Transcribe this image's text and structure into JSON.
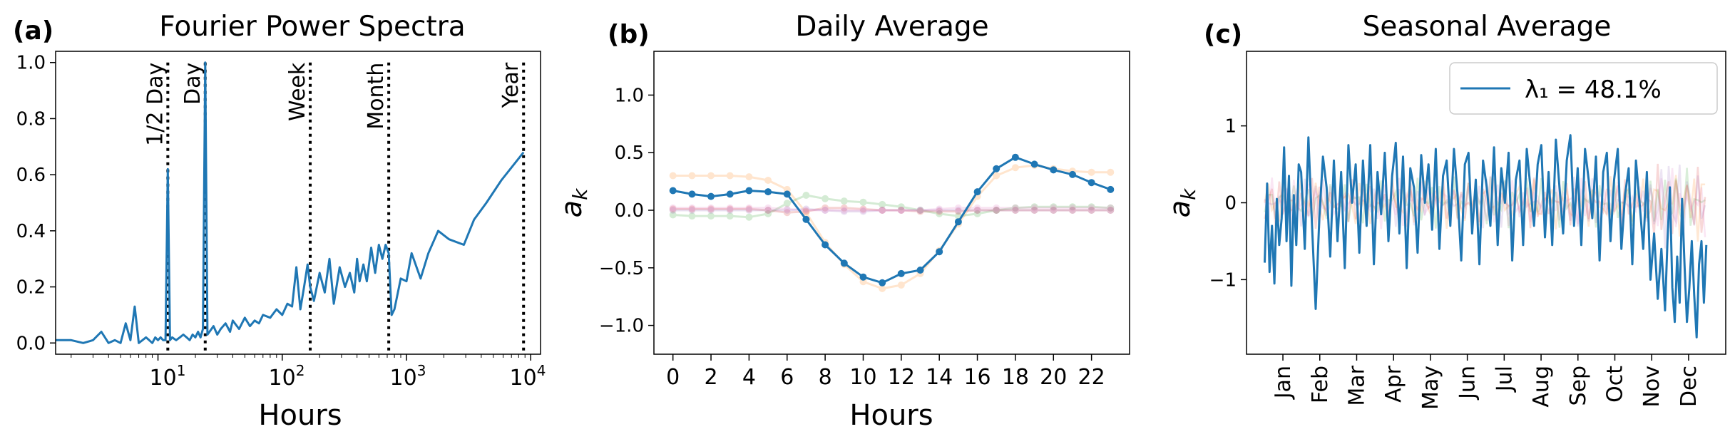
{
  "chart_data": [
    {
      "panel_label": "(a)",
      "type": "line",
      "title": "Fourier Power Spectra",
      "xlabel": "Hours",
      "ylabel": "",
      "xscale": "log",
      "xlim": [
        1.5,
        12000
      ],
      "ylim": [
        -0.04,
        1.04
      ],
      "xtick_labels": [
        "10^1",
        "10^2",
        "10^3",
        "10^4"
      ],
      "ytick_labels": [
        "0.0",
        "0.2",
        "0.4",
        "0.6",
        "0.8",
        "1.0"
      ],
      "color": "#1f77b4",
      "reference_lines": [
        {
          "label": "1/2 Day",
          "x": 12
        },
        {
          "label": "Day",
          "x": 24
        },
        {
          "label": "Week",
          "x": 168
        },
        {
          "label": "Month",
          "x": 720
        },
        {
          "label": "Year",
          "x": 8760
        }
      ],
      "series": [
        {
          "x": [
            1.5,
            2,
            2.5,
            3,
            3.5,
            4,
            4.5,
            5,
            5.5,
            6,
            6.5,
            7,
            7.5,
            8,
            8.5,
            9,
            9.5,
            10,
            10.5,
            11,
            11.5,
            12,
            12.5,
            13,
            14,
            15,
            16,
            17,
            18,
            19,
            20,
            21,
            22,
            23,
            24,
            25,
            26,
            28,
            30,
            32,
            35,
            38,
            40,
            45,
            50,
            55,
            60,
            65,
            70,
            80,
            90,
            100,
            110,
            120,
            130,
            140,
            150,
            160,
            168,
            180,
            200,
            220,
            240,
            260,
            290,
            320,
            350,
            380,
            400,
            420,
            450,
            480,
            520,
            560,
            600,
            640,
            680,
            720,
            760,
            800,
            900,
            1000,
            1100,
            1300,
            1500,
            1800,
            2200,
            2900,
            3500,
            4400,
            5800,
            8760
          ],
          "y": [
            0.01,
            0.01,
            0.0,
            0.01,
            0.04,
            0.0,
            0.01,
            0.0,
            0.07,
            0.01,
            0.13,
            0.0,
            0.01,
            0.02,
            0.01,
            0.0,
            0.02,
            0.01,
            0.02,
            0.01,
            0.01,
            0.62,
            0.01,
            0.02,
            0.01,
            0.02,
            0.03,
            0.02,
            0.01,
            0.03,
            0.02,
            0.04,
            0.02,
            0.05,
            1.0,
            0.03,
            0.04,
            0.06,
            0.03,
            0.05,
            0.07,
            0.04,
            0.08,
            0.05,
            0.09,
            0.06,
            0.08,
            0.07,
            0.1,
            0.09,
            0.12,
            0.1,
            0.14,
            0.13,
            0.27,
            0.12,
            0.2,
            0.28,
            0.2,
            0.15,
            0.25,
            0.18,
            0.3,
            0.14,
            0.27,
            0.2,
            0.25,
            0.18,
            0.3,
            0.22,
            0.28,
            0.22,
            0.34,
            0.25,
            0.35,
            0.3,
            0.35,
            0.32,
            0.1,
            0.12,
            0.23,
            0.22,
            0.32,
            0.23,
            0.32,
            0.4,
            0.37,
            0.35,
            0.44,
            0.5,
            0.58,
            0.68
          ]
        }
      ]
    },
    {
      "panel_label": "(b)",
      "type": "line",
      "title": "Daily Average",
      "xlabel": "Hours",
      "ylabel": "a_k",
      "xlim": [
        -1,
        24
      ],
      "ylim": [
        -1.25,
        1.38
      ],
      "xtick_labels": [
        "0",
        "2",
        "4",
        "6",
        "8",
        "10",
        "12",
        "14",
        "16",
        "18",
        "20",
        "22"
      ],
      "ytick_labels": [
        "1.0",
        "0.5",
        "0.0",
        "−0.5",
        "−1.0"
      ],
      "hours": [
        0,
        1,
        2,
        3,
        4,
        5,
        6,
        7,
        8,
        9,
        10,
        11,
        12,
        13,
        14,
        15,
        16,
        17,
        18,
        19,
        20,
        21,
        22,
        23
      ],
      "series": [
        {
          "color": "#1f77b4",
          "opacity": 1.0,
          "values": [
            0.17,
            0.14,
            0.12,
            0.14,
            0.17,
            0.16,
            0.14,
            -0.08,
            -0.3,
            -0.46,
            -0.58,
            -0.63,
            -0.55,
            -0.52,
            -0.36,
            -0.1,
            0.16,
            0.36,
            0.46,
            0.4,
            0.35,
            0.31,
            0.24,
            0.18
          ]
        },
        {
          "color": "#ff7f0e",
          "opacity": 0.2,
          "values": [
            0.3,
            0.3,
            0.3,
            0.3,
            0.29,
            0.26,
            0.18,
            -0.02,
            -0.28,
            -0.47,
            -0.62,
            -0.68,
            -0.65,
            -0.55,
            -0.35,
            -0.12,
            0.12,
            0.3,
            0.37,
            0.39,
            0.36,
            0.34,
            0.33,
            0.33
          ]
        },
        {
          "color": "#2ca02c",
          "opacity": 0.2,
          "values": [
            -0.04,
            -0.05,
            -0.05,
            -0.05,
            -0.06,
            -0.03,
            0.06,
            0.13,
            0.1,
            0.08,
            0.07,
            0.05,
            0.03,
            0.0,
            -0.03,
            -0.05,
            -0.03,
            0.0,
            0.02,
            0.03,
            0.03,
            0.03,
            0.03,
            0.02
          ]
        },
        {
          "color": "#d62728",
          "opacity": 0.2,
          "values": [
            0.01,
            0.01,
            0.01,
            0.01,
            0.01,
            0.0,
            -0.02,
            -0.01,
            0.02,
            0.02,
            0.01,
            0.0,
            0.0,
            -0.01,
            -0.01,
            -0.01,
            0.0,
            0.0,
            0.0,
            0.0,
            0.0,
            0.0,
            0.0,
            0.0
          ]
        },
        {
          "color": "#9467bd",
          "opacity": 0.2,
          "values": [
            0.0,
            0.0,
            0.0,
            0.0,
            0.0,
            0.0,
            0.0,
            0.01,
            0.0,
            -0.01,
            -0.01,
            0.0,
            0.0,
            0.0,
            0.0,
            0.0,
            0.0,
            0.0,
            0.0,
            0.0,
            0.0,
            0.0,
            0.0,
            0.0
          ]
        },
        {
          "color": "#e377c2",
          "opacity": 0.2,
          "values": [
            0.02,
            0.02,
            0.02,
            0.02,
            0.02,
            0.02,
            0.01,
            0.0,
            0.0,
            0.0,
            0.0,
            0.0,
            0.0,
            0.0,
            0.01,
            0.02,
            0.02,
            0.02,
            0.02,
            0.02,
            0.02,
            0.02,
            0.02,
            0.02
          ]
        }
      ]
    },
    {
      "panel_label": "(c)",
      "type": "line",
      "title": "Seasonal Average",
      "xlabel": "",
      "ylabel": "a_k",
      "xlim": [
        -15,
        380
      ],
      "ylim": [
        -1.97,
        1.97
      ],
      "xtick_labels": [
        "Jan",
        "Feb",
        "Mar",
        "Apr",
        "May",
        "Jun",
        "Jul",
        "Aug",
        "Sep",
        "Oct",
        "Nov",
        "Dec"
      ],
      "ytick_labels": [
        "1",
        "0",
        "−1"
      ],
      "legend": {
        "position": "top-right",
        "label": "λ₁ = 48.1%"
      },
      "series": [
        {
          "color": "#1f77b4",
          "opacity": 1.0,
          "day": [
            0,
            2,
            4,
            6,
            8,
            10,
            12,
            14,
            16,
            18,
            20,
            22,
            24,
            26,
            28,
            30,
            33,
            36,
            39,
            42,
            45,
            48,
            51,
            54,
            57,
            60,
            63,
            66,
            69,
            72,
            75,
            78,
            81,
            84,
            87,
            90,
            93,
            96,
            99,
            102,
            105,
            108,
            111,
            114,
            117,
            120,
            123,
            126,
            129,
            132,
            135,
            138,
            141,
            144,
            147,
            150,
            153,
            156,
            159,
            162,
            165,
            168,
            171,
            174,
            177,
            180,
            183,
            186,
            189,
            192,
            195,
            198,
            201,
            204,
            207,
            210,
            213,
            216,
            219,
            222,
            225,
            228,
            231,
            234,
            237,
            240,
            243,
            246,
            249,
            252,
            255,
            258,
            261,
            264,
            267,
            270,
            273,
            276,
            279,
            282,
            285,
            288,
            291,
            294,
            297,
            300,
            303,
            306,
            309,
            312,
            315,
            318,
            321,
            324,
            327,
            330,
            332,
            334,
            336,
            338,
            340,
            342,
            344,
            346,
            348,
            350,
            352,
            354,
            356,
            358,
            360,
            362,
            364
          ],
          "values": [
            -0.78,
            0.25,
            -0.9,
            -0.3,
            -1.05,
            0.05,
            -0.55,
            -0.2,
            0.72,
            -0.5,
            0.35,
            -1.08,
            0.1,
            -0.55,
            0.5,
            0.4,
            -0.6,
            0.85,
            -0.3,
            -1.38,
            -0.2,
            0.6,
            0.2,
            -0.7,
            0.55,
            -0.5,
            0.4,
            -0.85,
            0.75,
            0.0,
            0.5,
            -0.65,
            0.55,
            -0.3,
            0.75,
            -0.8,
            0.4,
            -0.15,
            0.65,
            -0.5,
            0.35,
            0.78,
            -0.4,
            0.6,
            -0.85,
            0.45,
            0.2,
            -0.65,
            0.62,
            0.0,
            0.5,
            -0.35,
            0.7,
            -0.6,
            0.35,
            0.55,
            -0.3,
            0.7,
            0.1,
            -0.75,
            0.5,
            0.65,
            -0.4,
            0.3,
            -0.8,
            0.55,
            0.2,
            -0.3,
            0.72,
            -0.55,
            0.45,
            0.0,
            0.65,
            -0.75,
            0.3,
            0.55,
            -0.55,
            0.7,
            0.2,
            -0.3,
            0.5,
            0.75,
            -0.45,
            0.4,
            -0.55,
            0.82,
            0.2,
            -0.4,
            0.55,
            0.88,
            -0.3,
            0.45,
            -0.55,
            0.7,
            0.3,
            -0.2,
            0.6,
            -0.75,
            0.4,
            0.65,
            -0.5,
            0.3,
            0.7,
            -0.6,
            0.1,
            0.45,
            -0.8,
            0.55,
            0.0,
            -0.6,
            0.4,
            -1.0,
            -0.4,
            -1.25,
            -0.6,
            -1.4,
            -0.5,
            0.2,
            -1.1,
            -1.55,
            -0.7,
            -1.3,
            0.05,
            -0.8,
            -1.55,
            -1.1,
            -0.5,
            -1.2,
            -1.75,
            -0.8,
            -0.5,
            -1.3,
            -0.55
          ]
        }
      ]
    }
  ]
}
